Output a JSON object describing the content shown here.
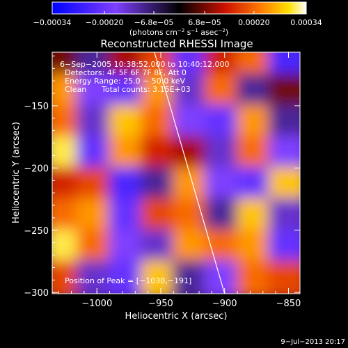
{
  "colorbar": {
    "ticks": [
      "−0.00034",
      "−0.00020",
      "−6.8e−05",
      "6.8e−05",
      "0.00020",
      "0.00034"
    ],
    "tick_values": [
      -0.00034,
      -0.0002,
      -6.8e-05,
      6.8e-05,
      0.0002,
      0.00034
    ],
    "range": [
      -0.00034,
      0.00034
    ],
    "units_main": "(photons cm",
    "units_sup1": "−2",
    "units_mid": " s",
    "units_sup2": "−1",
    "units_mid2": " asec",
    "units_sup3": "−2",
    "units_end": ")"
  },
  "header": {
    "title": "Reconstructed RHESSI Image",
    "info_time": "6−Sep−2005 10:38:52.000 to 10:40:12.000",
    "info_detectors": "Detectors: 4F 5F 6F 7F 8F, Att 0",
    "info_energy": "Energy Range: 25.0 − 50.0 keV",
    "info_clean": "Clean",
    "info_counts": "Total counts: 3.15E+03",
    "peak_label": "Position of Peak = [−1030,−191]"
  },
  "footer": {
    "timestamp": "9−Jul−2013 20:17"
  },
  "chart_data": {
    "type": "heatmap",
    "title": "Reconstructed RHESSI Image",
    "xlabel": "Heliocentric X (arcsec)",
    "ylabel": "Heliocentric Y (arcsec)",
    "xlim": [
      -1035,
      -841
    ],
    "ylim": [
      -301,
      -107
    ],
    "xticks": [
      -1000,
      -950,
      -900,
      -850
    ],
    "xtick_labels": [
      "−1000",
      "−950",
      "−900",
      "−850"
    ],
    "yticks": [
      -300,
      -250,
      -200,
      -150
    ],
    "ytick_labels": [
      "−300",
      "−250",
      "−200",
      "−150"
    ],
    "colormap": "RHESSI red-temperature (blue → purple → black → red → orange → yellow → white)",
    "peak_position": [
      -1030,
      -191
    ],
    "limb_line": [
      [
        -955,
        -107
      ],
      [
        -900,
        -301
      ]
    ],
    "grid_columns_x": [
      -1025,
      -1000,
      -975,
      -950,
      -925,
      -900,
      -875,
      -850
    ],
    "grid_rows_y": [
      -115,
      -140,
      -165,
      -190,
      -215,
      -240,
      -265,
      -290
    ],
    "values_note": "normalized intensity, -1..1 of colorbar range, rows top to bottom",
    "values": [
      [
        0.2,
        -0.3,
        0.3,
        0.5,
        -0.6,
        0.4,
        0.6,
        -0.7
      ],
      [
        0.7,
        -0.5,
        -0.6,
        0.7,
        -0.4,
        0.6,
        -0.3,
        0.2
      ],
      [
        0.6,
        -0.4,
        0.8,
        0.6,
        -0.5,
        -0.6,
        0.7,
        -0.3
      ],
      [
        0.9,
        -0.6,
        0.7,
        0.4,
        0.3,
        -0.4,
        0.6,
        -0.5
      ],
      [
        0.4,
        0.5,
        -0.7,
        -0.3,
        0.7,
        -0.5,
        -0.6,
        0.8
      ],
      [
        0.6,
        0.7,
        -0.6,
        0.5,
        0.6,
        -0.3,
        0.8,
        -0.4
      ],
      [
        0.9,
        0.6,
        -0.5,
        -0.4,
        0.7,
        0.6,
        0.7,
        -0.6
      ],
      [
        0.5,
        -0.4,
        -0.6,
        0.8,
        -0.3,
        -0.5,
        0.6,
        0.5
      ]
    ]
  }
}
